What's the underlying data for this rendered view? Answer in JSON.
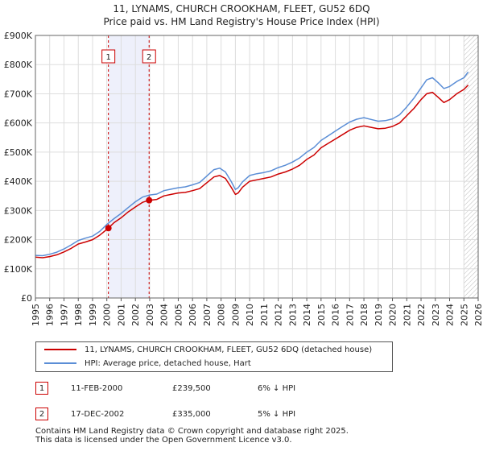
{
  "chart_data": {
    "type": "line",
    "title": "11, LYNAMS, CHURCH CROOKHAM, FLEET, GU52 6DQ",
    "subtitle": "Price paid vs. HM Land Registry's House Price Index (HPI)",
    "ylim": [
      0,
      900000
    ],
    "xlim": [
      1995,
      2026
    ],
    "y_ticks": [
      0,
      100000,
      200000,
      300000,
      400000,
      500000,
      600000,
      700000,
      800000,
      900000
    ],
    "y_tick_labels": [
      "£0",
      "£100K",
      "£200K",
      "£300K",
      "£400K",
      "£500K",
      "£600K",
      "£700K",
      "£800K",
      "£900K"
    ],
    "x_ticks": [
      1995,
      1996,
      1997,
      1998,
      1999,
      2000,
      2001,
      2002,
      2003,
      2004,
      2005,
      2006,
      2007,
      2008,
      2009,
      2010,
      2011,
      2012,
      2013,
      2014,
      2015,
      2016,
      2017,
      2018,
      2019,
      2020,
      2021,
      2022,
      2023,
      2024,
      2025,
      2026
    ],
    "x_tick_labels": [
      "1995",
      "1996",
      "1997",
      "1998",
      "1999",
      "2000",
      "2001",
      "2002",
      "2003",
      "2004",
      "2005",
      "2006",
      "2007",
      "2008",
      "2009",
      "2010",
      "2011",
      "2012",
      "2013",
      "2014",
      "2015",
      "2016",
      "2017",
      "2018",
      "2019",
      "2020",
      "2021",
      "2022",
      "2023",
      "2024",
      "2025",
      "2026"
    ],
    "shaded_period": [
      2000.11,
      2002.96
    ],
    "hatched_from": 2025.0,
    "grid": true,
    "series": [
      {
        "name": "11, LYNAMS, CHURCH CROOKHAM, FLEET, GU52 6DQ (detached house)",
        "color": "#cc0000",
        "x": [
          1995.0,
          1995.5,
          1996.0,
          1996.5,
          1997.0,
          1997.5,
          1998.0,
          1998.5,
          1999.0,
          1999.5,
          2000.11,
          2000.5,
          2001.0,
          2001.5,
          2002.0,
          2002.5,
          2002.96,
          2003.5,
          2004.0,
          2004.5,
          2005.0,
          2005.5,
          2006.0,
          2006.5,
          2007.0,
          2007.5,
          2007.9,
          2008.3,
          2008.7,
          2009.0,
          2009.2,
          2009.5,
          2010.0,
          2010.5,
          2011.0,
          2011.5,
          2012.0,
          2012.5,
          2013.0,
          2013.5,
          2014.0,
          2014.5,
          2015.0,
          2015.5,
          2016.0,
          2016.5,
          2017.0,
          2017.5,
          2018.0,
          2018.5,
          2019.0,
          2019.5,
          2020.0,
          2020.5,
          2021.0,
          2021.5,
          2022.0,
          2022.4,
          2022.8,
          2023.2,
          2023.6,
          2024.0,
          2024.5,
          2025.0,
          2025.3
        ],
        "values": [
          140000,
          138000,
          142000,
          148000,
          158000,
          170000,
          185000,
          192000,
          200000,
          215000,
          239500,
          258000,
          275000,
          295000,
          312000,
          328000,
          335000,
          338000,
          350000,
          355000,
          360000,
          362000,
          368000,
          375000,
          395000,
          415000,
          420000,
          410000,
          380000,
          355000,
          360000,
          380000,
          400000,
          405000,
          410000,
          415000,
          425000,
          432000,
          442000,
          455000,
          475000,
          490000,
          515000,
          530000,
          545000,
          560000,
          575000,
          585000,
          590000,
          585000,
          580000,
          582000,
          588000,
          600000,
          625000,
          650000,
          680000,
          700000,
          705000,
          688000,
          670000,
          680000,
          700000,
          715000,
          730000
        ]
      },
      {
        "name": "HPI: Average price, detached house, Hart",
        "color": "#5b8ed6",
        "x": [
          1995.0,
          1995.5,
          1996.0,
          1996.5,
          1997.0,
          1997.5,
          1998.0,
          1998.5,
          1999.0,
          1999.5,
          2000.0,
          2000.5,
          2001.0,
          2001.5,
          2002.0,
          2002.5,
          2003.0,
          2003.5,
          2004.0,
          2004.5,
          2005.0,
          2005.5,
          2006.0,
          2006.5,
          2007.0,
          2007.5,
          2007.9,
          2008.3,
          2008.7,
          2009.0,
          2009.2,
          2009.5,
          2010.0,
          2010.5,
          2011.0,
          2011.5,
          2012.0,
          2012.5,
          2013.0,
          2013.5,
          2014.0,
          2014.5,
          2015.0,
          2015.5,
          2016.0,
          2016.5,
          2017.0,
          2017.5,
          2018.0,
          2018.5,
          2019.0,
          2019.5,
          2020.0,
          2020.5,
          2021.0,
          2021.5,
          2022.0,
          2022.4,
          2022.8,
          2023.2,
          2023.6,
          2024.0,
          2024.5,
          2025.0,
          2025.3
        ],
        "values": [
          146000,
          145000,
          150000,
          157000,
          168000,
          182000,
          197000,
          205000,
          212000,
          228000,
          252000,
          272000,
          290000,
          310000,
          330000,
          346000,
          353000,
          356000,
          368000,
          373000,
          378000,
          381000,
          388000,
          396000,
          418000,
          440000,
          445000,
          432000,
          400000,
          372000,
          378000,
          398000,
          420000,
          426000,
          430000,
          436000,
          447000,
          455000,
          466000,
          480000,
          500000,
          516000,
          540000,
          556000,
          572000,
          588000,
          603000,
          613000,
          618000,
          612000,
          606000,
          608000,
          614000,
          628000,
          655000,
          685000,
          720000,
          748000,
          755000,
          738000,
          718000,
          725000,
          742000,
          755000,
          775000
        ]
      }
    ],
    "transactions": [
      {
        "marker": "1",
        "date": "11-FEB-2000",
        "price": "£239,500",
        "hpi_diff": "6% ↓ HPI",
        "x": 2000.11,
        "value": 239500
      },
      {
        "marker": "2",
        "date": "17-DEC-2002",
        "price": "£335,000",
        "hpi_diff": "5% ↓ HPI",
        "x": 2002.96,
        "value": 335000
      }
    ],
    "legend": [
      {
        "label": "11, LYNAMS, CHURCH CROOKHAM, FLEET, GU52 6DQ (detached house)",
        "color": "#cc0000"
      },
      {
        "label": "HPI: Average price, detached house, Hart",
        "color": "#5b8ed6"
      }
    ]
  },
  "footer": {
    "line1": "Contains HM Land Registry data © Crown copyright and database right 2025.",
    "line2": "This data is licensed under the Open Government Licence v3.0."
  }
}
